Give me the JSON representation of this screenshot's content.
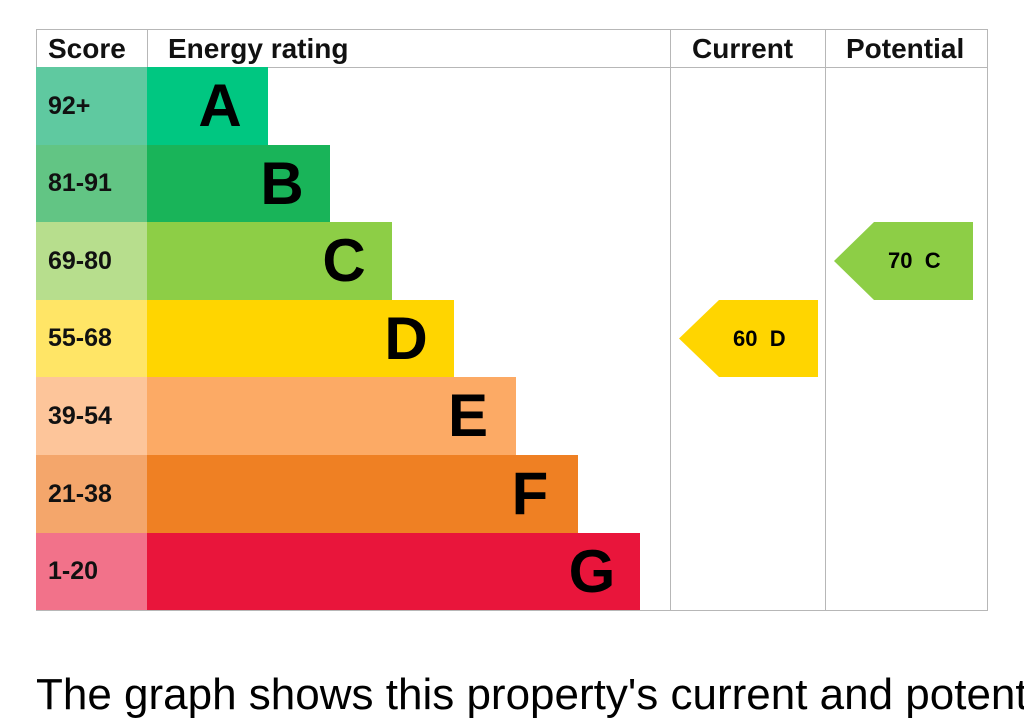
{
  "chart_data": {
    "type": "table",
    "headers": {
      "score": "Score",
      "rating": "Energy rating",
      "current": "Current",
      "potential": "Potential"
    },
    "bands": [
      {
        "score": "92+",
        "letter": "A",
        "color": "#00c781",
        "score_color": "#5fc9a0"
      },
      {
        "score": "81-91",
        "letter": "B",
        "color": "#19b459",
        "score_color": "#62c584"
      },
      {
        "score": "69-80",
        "letter": "C",
        "color": "#8dce46",
        "score_color": "#b7de8d"
      },
      {
        "score": "55-68",
        "letter": "D",
        "color": "#ffd500",
        "score_color": "#ffe566"
      },
      {
        "score": "39-54",
        "letter": "E",
        "color": "#fcaa65",
        "score_color": "#fdc59a"
      },
      {
        "score": "21-38",
        "letter": "F",
        "color": "#ef8023",
        "score_color": "#f4a66b"
      },
      {
        "score": "1-20",
        "letter": "G",
        "color": "#e9153b",
        "score_color": "#f2728a"
      }
    ],
    "current": {
      "value": 60,
      "band": "D",
      "label": "60  D",
      "color": "#ffd500"
    },
    "potential": {
      "value": 70,
      "band": "C",
      "label": "70  C",
      "color": "#8dce46"
    }
  },
  "footer": {
    "text": "The graph shows this property's current and potential"
  }
}
